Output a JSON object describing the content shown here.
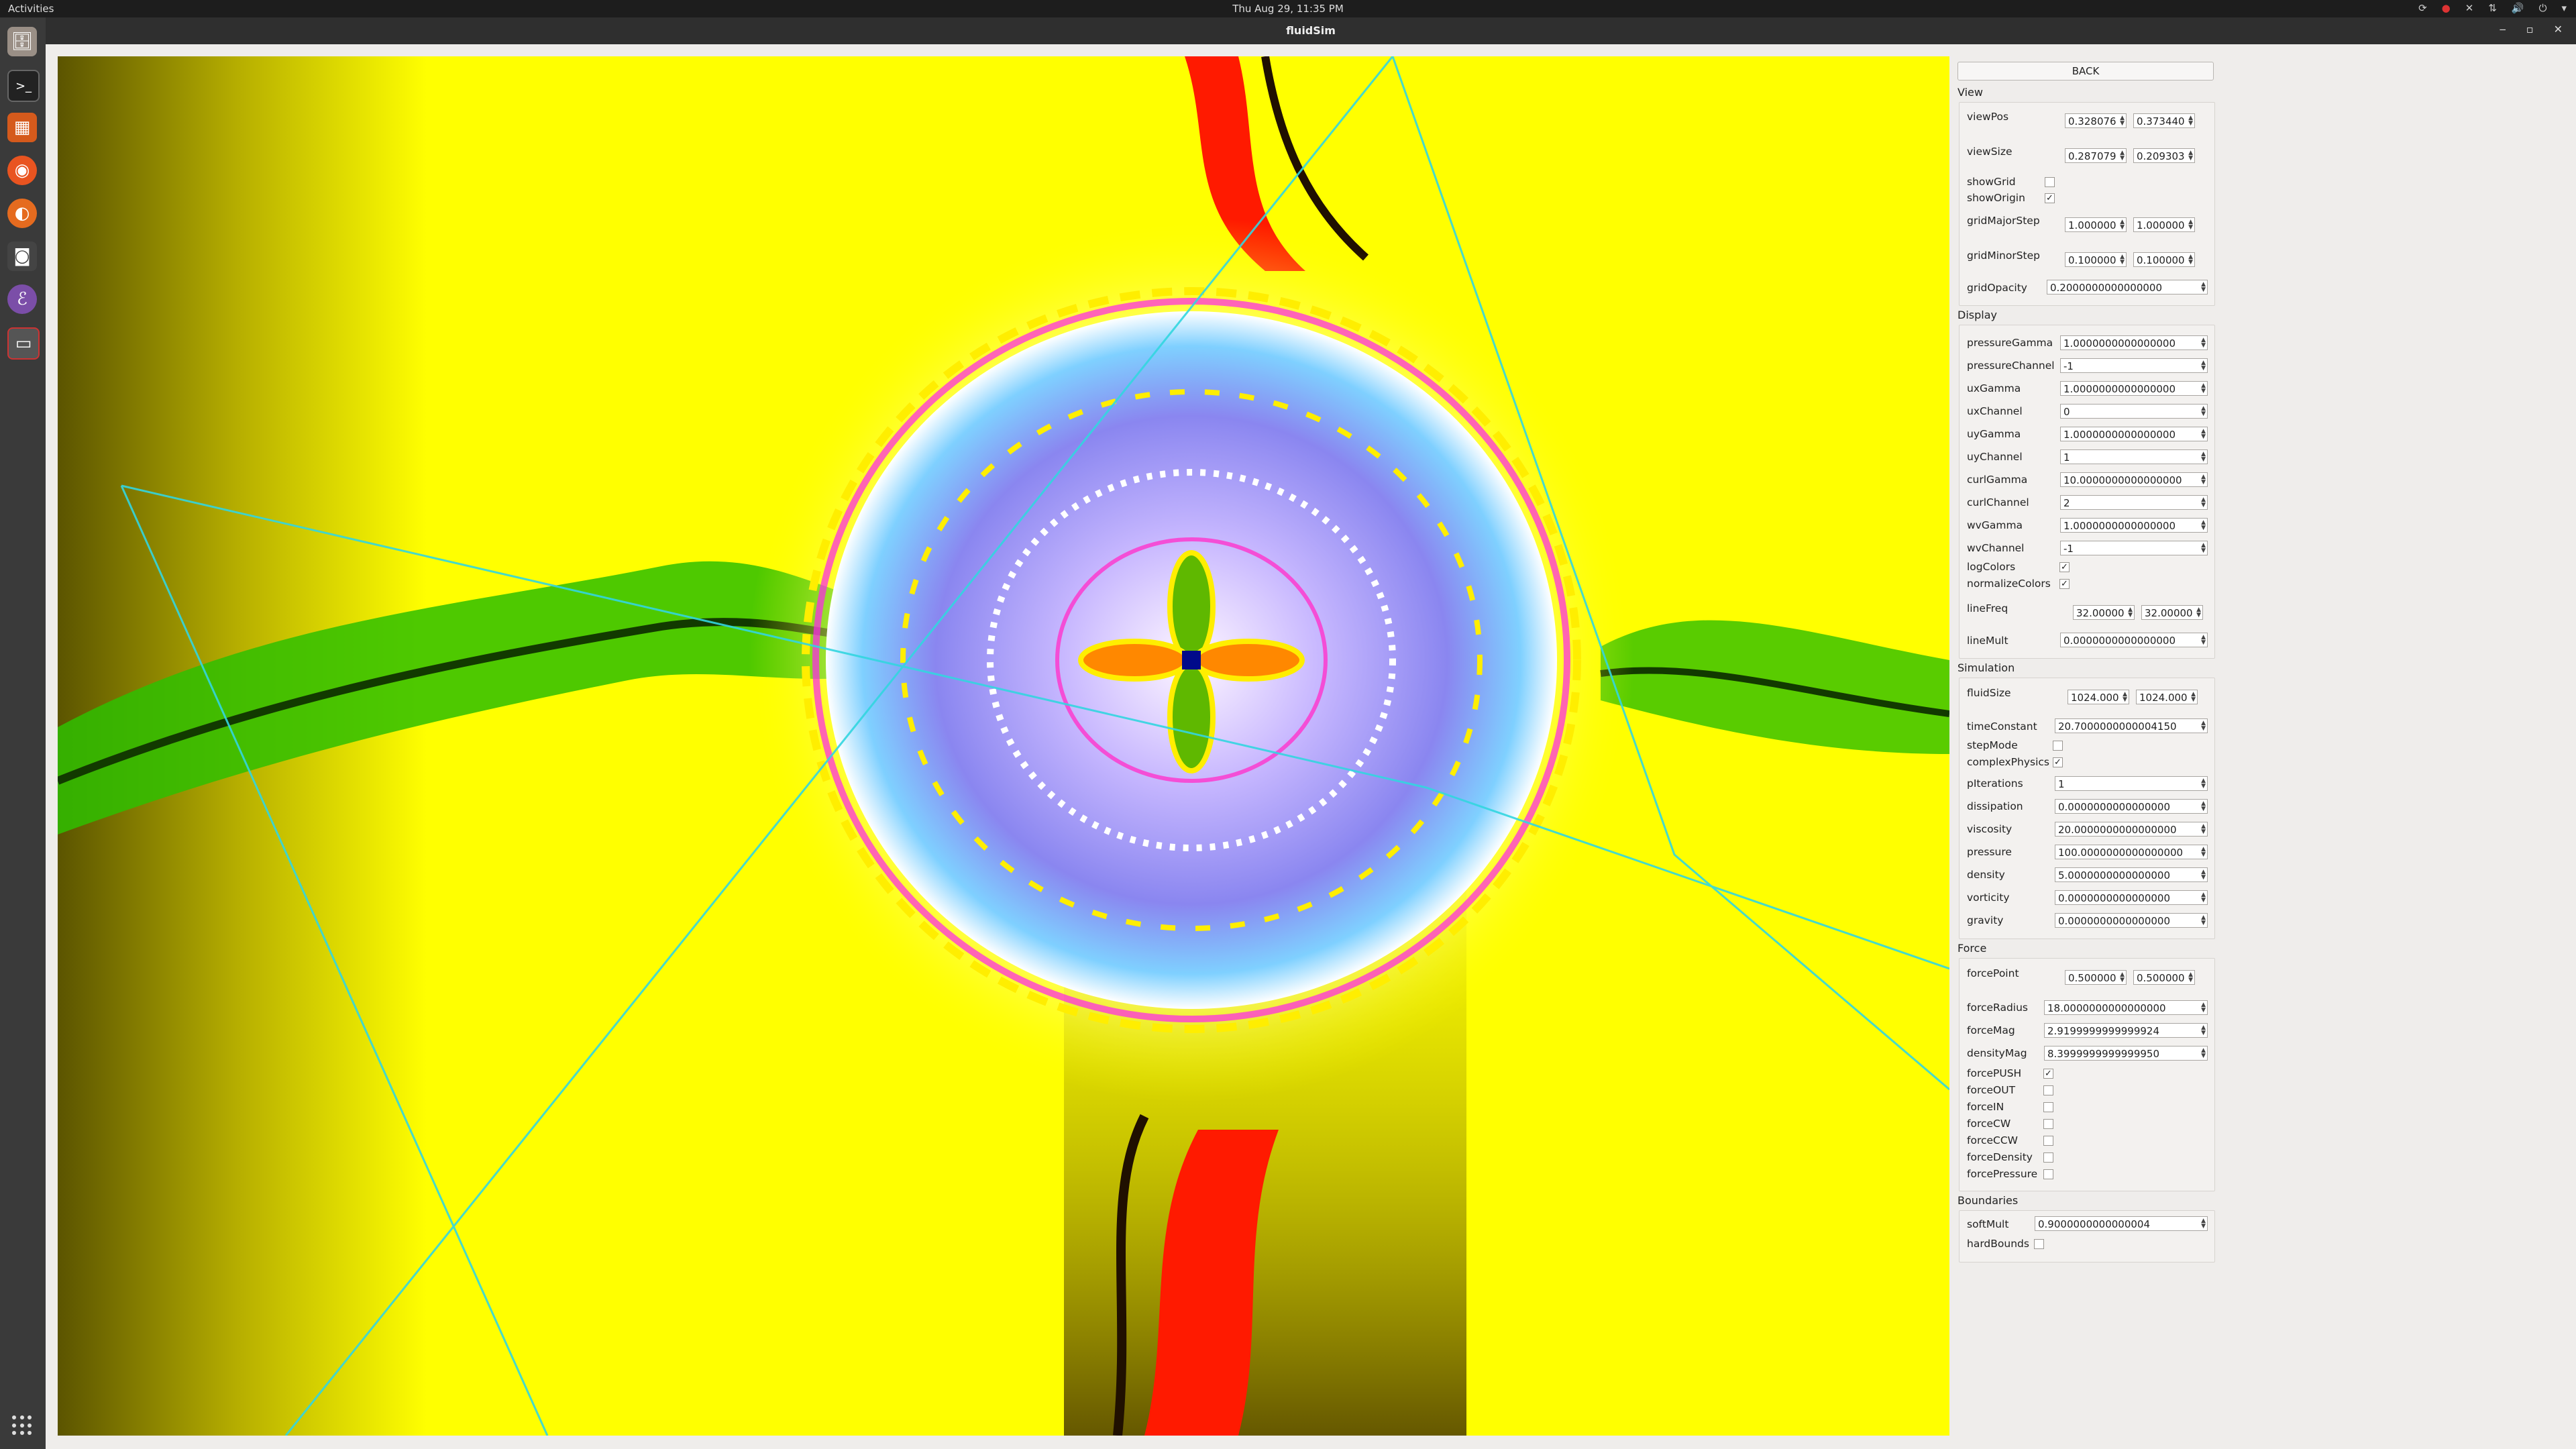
{
  "topbar": {
    "activities": "Activities",
    "clock": "Thu Aug 29, 11:35 PM"
  },
  "window": {
    "title": "fluidSim"
  },
  "panel": {
    "back": "BACK",
    "sections": {
      "view": "View",
      "display": "Display",
      "simulation": "Simulation",
      "force": "Force",
      "boundaries": "Boundaries"
    },
    "view": {
      "viewPos": {
        "label": "viewPos",
        "x": "0.328076",
        "y": "0.373440"
      },
      "viewSize": {
        "label": "viewSize",
        "x": "0.287079",
        "y": "0.209303"
      },
      "showGrid": {
        "label": "showGrid",
        "checked": false
      },
      "showOrigin": {
        "label": "showOrigin",
        "checked": true
      },
      "gridMajorStep": {
        "label": "gridMajorStep",
        "x": "1.000000",
        "y": "1.000000"
      },
      "gridMinorStep": {
        "label": "gridMinorStep",
        "x": "0.100000",
        "y": "0.100000"
      },
      "gridOpacity": {
        "label": "gridOpacity",
        "value": "0.2000000000000000"
      }
    },
    "display": [
      {
        "label": "pressureGamma",
        "value": "1.0000000000000000"
      },
      {
        "label": "pressureChannel",
        "value": "-1"
      },
      {
        "label": "uxGamma",
        "value": "1.0000000000000000"
      },
      {
        "label": "uxChannel",
        "value": "0"
      },
      {
        "label": "uyGamma",
        "value": "1.0000000000000000"
      },
      {
        "label": "uyChannel",
        "value": "1"
      },
      {
        "label": "curlGamma",
        "value": "10.0000000000000000"
      },
      {
        "label": "curlChannel",
        "value": "2"
      },
      {
        "label": "wvGamma",
        "value": "1.0000000000000000"
      },
      {
        "label": "wvChannel",
        "value": "-1"
      }
    ],
    "displayChecks": [
      {
        "label": "logColors",
        "checked": true
      },
      {
        "label": "normalizeColors",
        "checked": true
      }
    ],
    "lineFreq": {
      "label": "lineFreq",
      "x": "32.00000",
      "y": "32.00000"
    },
    "lineMult": {
      "label": "lineMult",
      "value": "0.0000000000000000"
    },
    "simulation": {
      "fluidSize": {
        "label": "fluidSize",
        "x": "1024.000",
        "y": "1024.000"
      },
      "timeConstant": {
        "label": "timeConstant",
        "value": "20.7000000000004150"
      },
      "stepMode": {
        "label": "stepMode",
        "checked": false
      },
      "complexPhysics": {
        "label": "complexPhysics",
        "checked": true
      },
      "fields": [
        {
          "label": "pIterations",
          "value": "1"
        },
        {
          "label": "dissipation",
          "value": "0.0000000000000000"
        },
        {
          "label": "viscosity",
          "value": "20.0000000000000000"
        },
        {
          "label": "pressure",
          "value": "100.0000000000000000"
        },
        {
          "label": "density",
          "value": "5.0000000000000000"
        },
        {
          "label": "vorticity",
          "value": "0.0000000000000000"
        },
        {
          "label": "gravity",
          "value": "0.0000000000000000"
        }
      ]
    },
    "force": {
      "forcePoint": {
        "label": "forcePoint",
        "x": "0.500000",
        "y": "0.500000"
      },
      "fields": [
        {
          "label": "forceRadius",
          "value": "18.0000000000000000"
        },
        {
          "label": "forceMag",
          "value": "2.9199999999999924"
        },
        {
          "label": "densityMag",
          "value": "8.3999999999999950"
        }
      ],
      "checks": [
        {
          "label": "forcePUSH",
          "checked": true
        },
        {
          "label": "forceOUT",
          "checked": false
        },
        {
          "label": "forceIN",
          "checked": false
        },
        {
          "label": "forceCW",
          "checked": false
        },
        {
          "label": "forceCCW",
          "checked": false
        },
        {
          "label": "forceDensity",
          "checked": false
        },
        {
          "label": "forcePressure",
          "checked": false
        }
      ]
    },
    "boundaries": {
      "softMult": {
        "label": "softMult",
        "value": "0.9000000000000004"
      },
      "hardBounds": {
        "label": "hardBounds",
        "checked": false
      }
    }
  },
  "colors": {
    "field": "#ffff00",
    "vortex": "#7f7ff0",
    "accent": "#00e0ff"
  }
}
